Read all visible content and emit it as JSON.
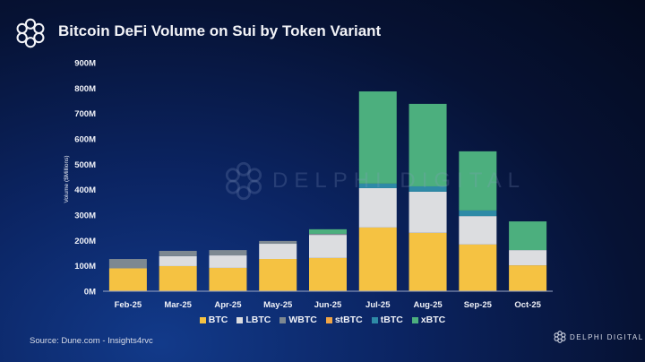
{
  "header": {
    "title": "Bitcoin DeFi Volume on Sui by Token Variant"
  },
  "footer": {
    "source": "Source: Dune.com - Insights4rvc",
    "brand": "DELPHI DIGITAL"
  },
  "watermark": "DELPHI DIGITAL",
  "chart_data": {
    "type": "bar",
    "stacked": true,
    "title": "Bitcoin DeFi Volume on Sui by Token Variant",
    "xlabel": "",
    "ylabel": "Volume ($Millions)",
    "ylim": [
      0,
      900
    ],
    "yticks": [
      0,
      100,
      200,
      300,
      400,
      500,
      600,
      700,
      800,
      900
    ],
    "ytick_labels": [
      "0M",
      "100M",
      "200M",
      "300M",
      "400M",
      "500M",
      "600M",
      "700M",
      "800M",
      "900M"
    ],
    "categories": [
      "Feb-25",
      "Mar-25",
      "Apr-25",
      "May-25",
      "Jun-25",
      "Jul-25",
      "Aug-25",
      "Sep-25",
      "Oct-25"
    ],
    "legend_position": "bottom",
    "series": [
      {
        "name": "BTC",
        "color": "#f5c242",
        "values": [
          90,
          99,
          92,
          127,
          131,
          251,
          230,
          184,
          102
        ]
      },
      {
        "name": "LBTC",
        "color": "#dcdde0",
        "values": [
          0,
          39,
          49,
          60,
          91,
          155,
          162,
          112,
          60
        ]
      },
      {
        "name": "WBTC",
        "color": "#7d8891",
        "values": [
          37,
          21,
          21,
          11,
          4,
          0,
          0,
          0,
          0
        ]
      },
      {
        "name": "stBTC",
        "color": "#f0a545",
        "values": [
          0,
          0,
          0,
          0,
          0,
          0,
          0,
          0,
          0
        ]
      },
      {
        "name": "tBTC",
        "color": "#2e8aa6",
        "values": [
          0,
          0,
          0,
          0,
          0,
          18,
          21,
          22,
          0
        ]
      },
      {
        "name": "xBTC",
        "color": "#4caf7e",
        "values": [
          0,
          0,
          0,
          0,
          18,
          363,
          325,
          233,
          113
        ]
      }
    ]
  }
}
